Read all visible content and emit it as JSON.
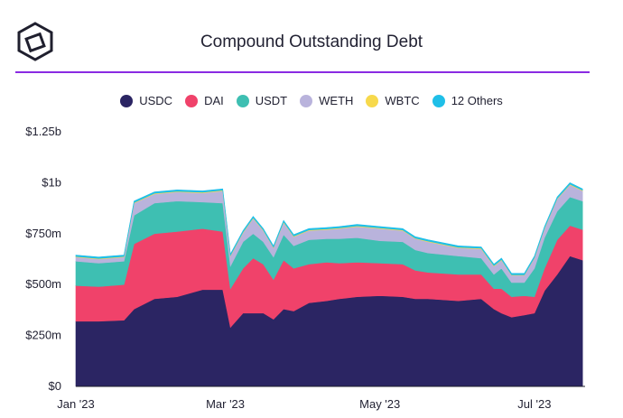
{
  "header": {
    "title": "Compound Outstanding Debt",
    "logo_icon": "cube-icon"
  },
  "colors": {
    "accent_divider": "#8a2be2",
    "USDC": "#2b2563",
    "DAI": "#f0426a",
    "USDT": "#3ebfb2",
    "WETH": "#b9b3dc",
    "WBTC": "#f7d94c",
    "12 Others": "#1fbfe8"
  },
  "chart_data": {
    "type": "area",
    "stacked": true,
    "title": "Compound Outstanding Debt",
    "legend_position": "top",
    "grid": false,
    "ylim": [
      0,
      1250000000
    ],
    "yticks": [
      {
        "value": 0,
        "label": "$0"
      },
      {
        "value": 250000000,
        "label": "$250m"
      },
      {
        "value": 500000000,
        "label": "$500m"
      },
      {
        "value": 750000000,
        "label": "$750m"
      },
      {
        "value": 1000000000,
        "label": "$1b"
      },
      {
        "value": 1250000000,
        "label": "$1.25b"
      }
    ],
    "xlim": [
      "2023-01-01",
      "2023-07-21"
    ],
    "xticks": [
      {
        "date": "2023-01-01",
        "label": "Jan '23"
      },
      {
        "date": "2023-03-01",
        "label": "Mar '23"
      },
      {
        "date": "2023-05-01",
        "label": "May '23"
      },
      {
        "date": "2023-07-01",
        "label": "Jul '23"
      }
    ],
    "x": [
      "2023-01-01",
      "2023-01-10",
      "2023-01-20",
      "2023-01-24",
      "2023-02-01",
      "2023-02-10",
      "2023-02-20",
      "2023-02-28",
      "2023-03-03",
      "2023-03-08",
      "2023-03-12",
      "2023-03-16",
      "2023-03-20",
      "2023-03-24",
      "2023-03-28",
      "2023-04-03",
      "2023-04-10",
      "2023-04-15",
      "2023-04-22",
      "2023-05-01",
      "2023-05-10",
      "2023-05-15",
      "2023-05-20",
      "2023-06-01",
      "2023-06-10",
      "2023-06-15",
      "2023-06-18",
      "2023-06-22",
      "2023-06-27",
      "2023-07-01",
      "2023-07-05",
      "2023-07-10",
      "2023-07-15",
      "2023-07-20"
    ],
    "series": [
      {
        "name": "USDC",
        "values": [
          320,
          320,
          325,
          380,
          430,
          440,
          475,
          475,
          290,
          360,
          360,
          360,
          330,
          380,
          370,
          410,
          420,
          430,
          440,
          445,
          440,
          430,
          430,
          420,
          430,
          380,
          360,
          340,
          350,
          360,
          470,
          550,
          640,
          620
        ]
      },
      {
        "name": "DAI",
        "values": [
          175,
          170,
          175,
          320,
          320,
          320,
          300,
          285,
          190,
          220,
          270,
          240,
          195,
          240,
          210,
          190,
          190,
          175,
          170,
          160,
          160,
          140,
          130,
          130,
          120,
          100,
          120,
          100,
          95,
          80,
          110,
          170,
          150,
          150
        ]
      },
      {
        "name": "USDT",
        "values": [
          120,
          115,
          115,
          140,
          150,
          150,
          130,
          140,
          110,
          130,
          120,
          110,
          110,
          125,
          110,
          120,
          115,
          120,
          120,
          110,
          110,
          100,
          95,
          90,
          80,
          70,
          100,
          70,
          65,
          140,
          150,
          140,
          140,
          140
        ]
      },
      {
        "name": "WETH",
        "values": [
          20,
          20,
          20,
          60,
          45,
          45,
          45,
          60,
          50,
          45,
          75,
          55,
          45,
          60,
          45,
          45,
          45,
          50,
          55,
          60,
          55,
          55,
          55,
          40,
          45,
          40,
          40,
          35,
          35,
          50,
          45,
          60,
          60,
          50
        ]
      },
      {
        "name": "WBTC",
        "values": [
          3,
          3,
          3,
          3,
          3,
          3,
          3,
          3,
          3,
          3,
          3,
          3,
          3,
          3,
          3,
          3,
          3,
          3,
          3,
          3,
          3,
          3,
          3,
          3,
          3,
          3,
          3,
          3,
          3,
          3,
          3,
          3,
          3,
          3
        ]
      },
      {
        "name": "12 Others",
        "values": [
          7,
          7,
          7,
          7,
          7,
          7,
          7,
          7,
          7,
          7,
          7,
          7,
          7,
          7,
          7,
          7,
          7,
          7,
          7,
          7,
          7,
          7,
          7,
          7,
          7,
          7,
          7,
          7,
          7,
          7,
          7,
          7,
          7,
          7
        ]
      }
    ]
  }
}
